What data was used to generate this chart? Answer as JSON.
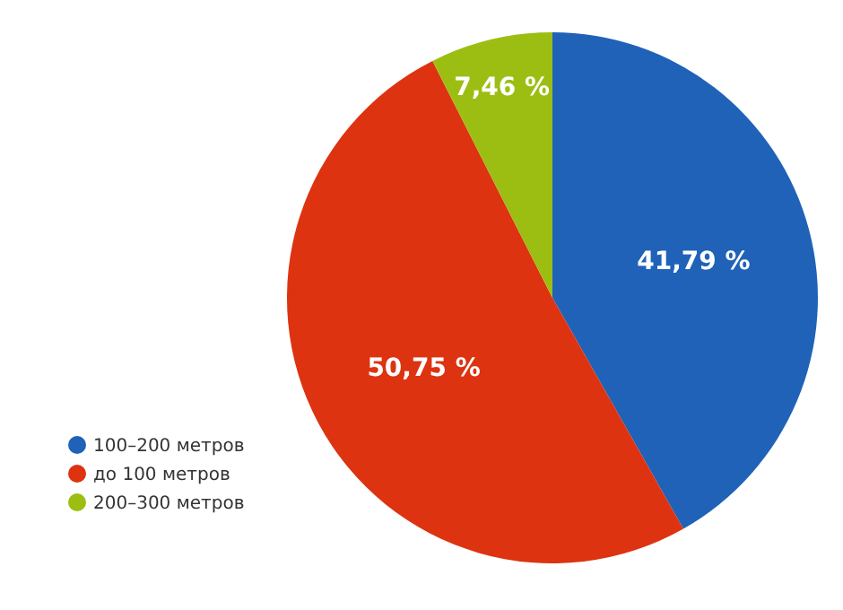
{
  "chart_data": {
    "type": "pie",
    "categories": [
      "100–200 метров",
      "до 100 метров",
      "200–300 метров"
    ],
    "values": [
      41.79,
      50.75,
      7.46
    ],
    "colors": [
      "#1f62b8",
      "#dd3310",
      "#9cbe12"
    ],
    "value_labels": [
      "41,79 %",
      "50,75 %",
      "7,46 %"
    ],
    "legend": "bottom left"
  }
}
